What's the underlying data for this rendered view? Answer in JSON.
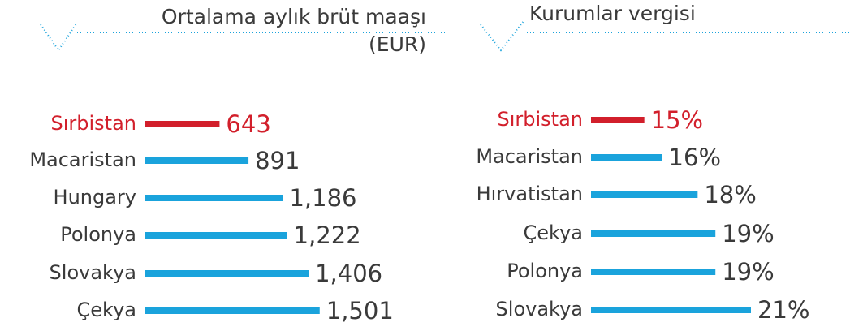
{
  "chart_data": [
    {
      "type": "bar",
      "orientation": "horizontal",
      "title": "Ortalama aylık brüt maaşı",
      "subtitle": "(EUR)",
      "categories": [
        "Sırbistan",
        "Macaristan",
        "Hungary",
        "Polonya",
        "Slovakya",
        "Çekya"
      ],
      "values": [
        643,
        891,
        1186,
        1222,
        1406,
        1501
      ],
      "value_labels": [
        "643",
        "891",
        "1,186",
        "1,222",
        "1,406",
        "1,501"
      ],
      "colors": [
        "#d21f2b",
        "#1aa3dc",
        "#1aa3dc",
        "#1aa3dc",
        "#1aa3dc",
        "#1aa3dc"
      ],
      "xlim": [
        0,
        1600
      ]
    },
    {
      "type": "bar",
      "orientation": "horizontal",
      "title": "Kurumlar vergisi",
      "categories": [
        "Sırbistan",
        "Macaristan",
        "Hırvatistan",
        "Çekya",
        "Polonya",
        "Slovakya"
      ],
      "values": [
        15,
        16,
        18,
        19,
        19,
        21
      ],
      "value_labels": [
        "15%",
        "16%",
        "18%",
        "19%",
        "19%",
        "21%"
      ],
      "colors": [
        "#d21f2b",
        "#1aa3dc",
        "#1aa3dc",
        "#1aa3dc",
        "#1aa3dc",
        "#1aa3dc"
      ],
      "xlim": [
        12,
        21
      ]
    }
  ]
}
